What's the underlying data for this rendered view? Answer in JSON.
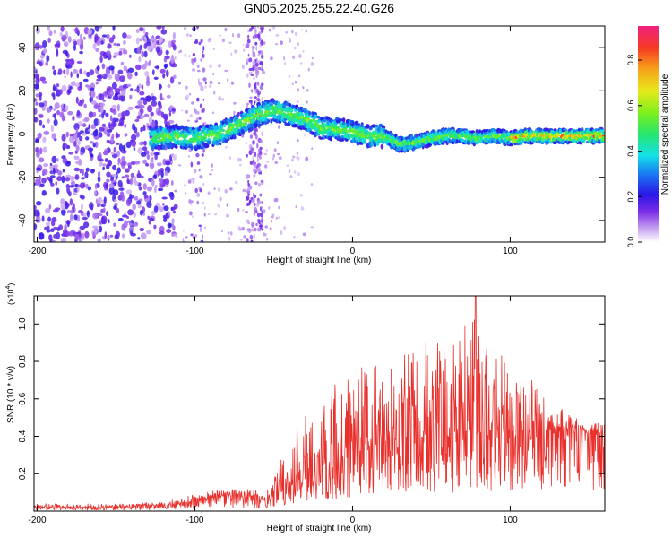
{
  "title": "GN05.2025.255.22.40.G26",
  "chart_data": [
    {
      "type": "heatmap",
      "name": "spectrogram",
      "xlabel": "Height of straight line (km)",
      "ylabel": "Frequency (Hz)",
      "xlim": [
        -202,
        160
      ],
      "ylim": [
        -50,
        50
      ],
      "xticks": [
        -200,
        -100,
        0,
        100
      ],
      "yticks": [
        -40,
        -20,
        0,
        20,
        40
      ],
      "ridge": {
        "x": [
          -128,
          -115,
          -100,
          -85,
          -70,
          -60,
          -50,
          -40,
          -30,
          -20,
          -10,
          0,
          10,
          20,
          30,
          40,
          50,
          60,
          70,
          80,
          90,
          100,
          110,
          120,
          130,
          140,
          150,
          160
        ],
        "frequency": [
          -2,
          -1,
          -2,
          0,
          5,
          9,
          11,
          9,
          7,
          3,
          2,
          1,
          -1,
          -1,
          -5,
          -4,
          -2,
          -1,
          -1,
          -2,
          -1,
          -2,
          -1,
          -1,
          -1,
          -1,
          -1,
          -1
        ]
      },
      "colorbar": {
        "label": "Normalized spectral amplitude",
        "range": [
          0,
          0.95
        ],
        "ticks": [
          0.0,
          0.2,
          0.4,
          0.6,
          0.8
        ],
        "tick_labels": [
          "0.0",
          "0.2",
          "0.4",
          "0.6",
          "0.8"
        ]
      }
    },
    {
      "type": "line",
      "name": "snr",
      "xlabel": "Height of straight line (km)",
      "ylabel": "SNR (10 * v/v)",
      "scale_label": "(x10",
      "scale_exponent": "4",
      "scale_close": ")",
      "xlim": [
        -202,
        160
      ],
      "ylim": [
        0,
        1.15
      ],
      "xticks": [
        -200,
        -100,
        0,
        100
      ],
      "yticks": [
        0.2,
        0.4,
        0.6,
        0.8,
        1.0
      ],
      "ytick_labels": [
        "0.2",
        "0.4",
        "0.6",
        "0.8",
        "1.0"
      ],
      "color": "#e8302c",
      "envelope": {
        "x": [
          -202,
          -150,
          -120,
          -100,
          -80,
          -65,
          -55,
          -45,
          -35,
          -25,
          -15,
          -5,
          0,
          10,
          20,
          30,
          40,
          50,
          60,
          70,
          78,
          85,
          90,
          100,
          110,
          120,
          130,
          140,
          150,
          160
        ],
        "mean": [
          0.02,
          0.02,
          0.03,
          0.05,
          0.08,
          0.07,
          0.05,
          0.1,
          0.18,
          0.2,
          0.24,
          0.28,
          0.3,
          0.33,
          0.35,
          0.36,
          0.36,
          0.37,
          0.38,
          0.38,
          0.42,
          0.4,
          0.38,
          0.37,
          0.38,
          0.4,
          0.42,
          0.42,
          0.41,
          0.4
        ],
        "max": [
          0.04,
          0.04,
          0.05,
          0.09,
          0.14,
          0.12,
          0.1,
          0.28,
          0.5,
          0.62,
          0.68,
          0.72,
          0.75,
          0.8,
          0.88,
          0.92,
          0.88,
          0.92,
          0.9,
          0.98,
          1.15,
          0.92,
          0.85,
          0.85,
          0.78,
          0.62,
          0.58,
          0.5,
          0.48,
          0.47
        ]
      }
    }
  ],
  "colors": {
    "snr_line": "#e8302c",
    "axis": "#000000"
  }
}
